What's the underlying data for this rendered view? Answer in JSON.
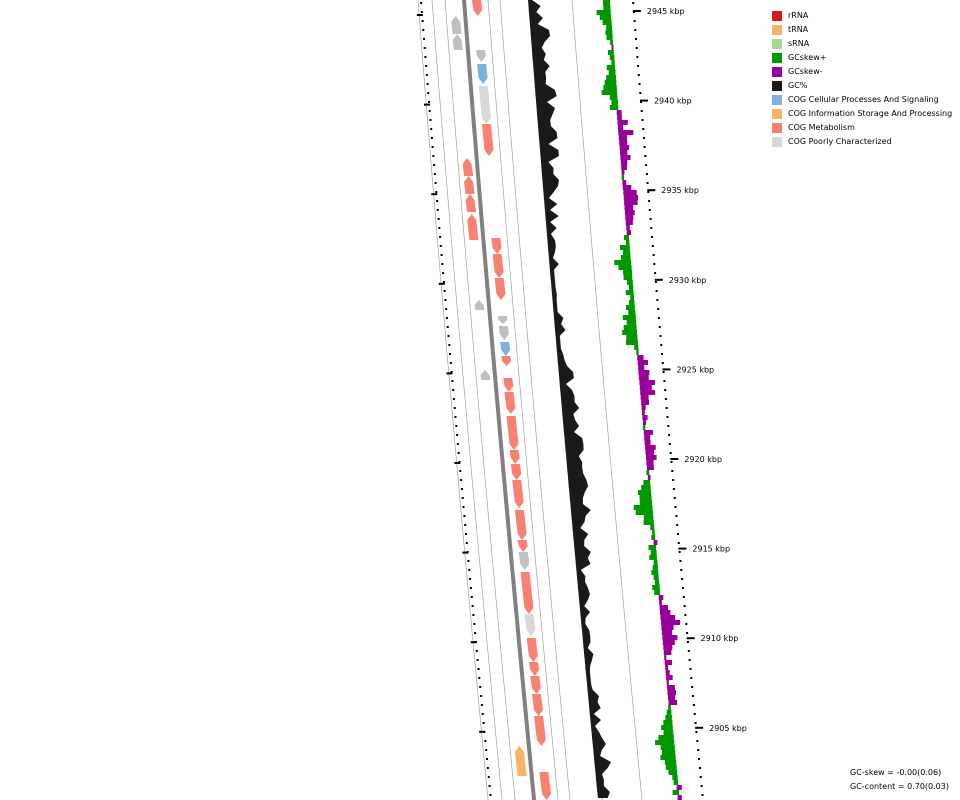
{
  "colors": {
    "backbone": "#808080",
    "ring_line": "#a0a0a0",
    "gc_content": "#1a1a1a",
    "gc_skew_plus": "#009900",
    "gc_skew_minus": "#990099",
    "cog_metabolism": "#fa8072",
    "cog_cellular": "#7fb2d9",
    "cog_info": "#f9b366",
    "cog_poor": "#d8d8d8",
    "hypothetical": "#bfbfbf"
  },
  "legend": [
    {
      "label": "rRNA",
      "color": "#d11a1a"
    },
    {
      "label": "tRNA",
      "color": "#f9b366"
    },
    {
      "label": "sRNA",
      "color": "#a6d996"
    },
    {
      "label": "GCskew+",
      "color": "#009900"
    },
    {
      "label": "GCskew-",
      "color": "#990099"
    },
    {
      "label": "GC%",
      "color": "#1a1a1a"
    },
    {
      "label": "COG Cellular Processes And Signaling",
      "color": "#7fb2d9"
    },
    {
      "label": "COG Information Storage And Processing",
      "color": "#f9b366"
    },
    {
      "label": "COG Metabolism",
      "color": "#fa8072"
    },
    {
      "label": "COG Poorly Characterized",
      "color": "#d8d8d8"
    }
  ],
  "ticks": [
    {
      "label": "2945 kbp",
      "kbp": 2945
    },
    {
      "label": "2940 kbp",
      "kbp": 2940
    },
    {
      "label": "2935 kbp",
      "kbp": 2935
    },
    {
      "label": "2930 kbp",
      "kbp": 2930
    },
    {
      "label": "2925 kbp",
      "kbp": 2925
    },
    {
      "label": "2920 kbp",
      "kbp": 2920
    },
    {
      "label": "2915 kbp",
      "kbp": 2915
    },
    {
      "label": "2910 kbp",
      "kbp": 2910
    },
    {
      "label": "2905 kbp",
      "kbp": 2905
    }
  ],
  "stats": {
    "gc_skew": "GC-skew = -0.00(0.06)",
    "gc_content": "GC-content = 0.70(0.03)"
  }
}
